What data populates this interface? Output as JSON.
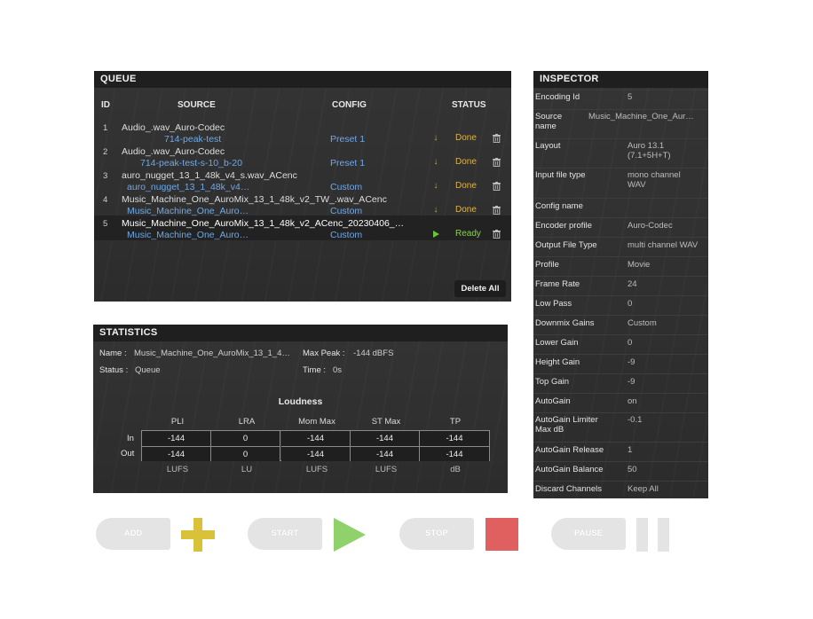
{
  "queue": {
    "title": "QUEUE",
    "columns": {
      "id": "ID",
      "source": "SOURCE",
      "config": "CONFIG",
      "status": "STATUS"
    },
    "rows": [
      {
        "id": "1",
        "source_line1": "Audio_.wav_Auro-Codec",
        "source_line2": "714-peak-test",
        "config": "Preset 1",
        "status": "Done",
        "status_icon": "download-icon"
      },
      {
        "id": "2",
        "source_line1": "Audio_.wav_Auro-Codec",
        "source_line2": "714-peak-test-s-10_b-20",
        "config": "Preset 1",
        "status": "Done",
        "status_icon": "download-icon"
      },
      {
        "id": "3",
        "source_line1": "auro_nugget_13_1_48k_v4_s.wav_ACenc",
        "source_line2": "auro_nugget_13_1_48k_v4…",
        "config": "Custom",
        "status": "Done",
        "status_icon": "download-icon"
      },
      {
        "id": "4",
        "source_line1": "Music_Machine_One_AuroMix_13_1_48k_v2_TW_.wav_ACenc",
        "source_line2": "Music_Machine_One_Auro…",
        "config": "Custom",
        "status": "Done",
        "status_icon": "download-icon"
      },
      {
        "id": "5",
        "source_line1": "Music_Machine_One_AuroMix_13_1_48k_v2_ACenc_20230406_…",
        "source_line2": "Music_Machine_One_Auro…",
        "config": "Custom",
        "status": "Ready",
        "status_icon": "play-icon"
      }
    ],
    "delete_all_label": "Delete All"
  },
  "inspector": {
    "title": "INSPECTOR",
    "rows": [
      {
        "label": "Encoding Id",
        "value": "5"
      },
      {
        "label": "Source name",
        "value": "Music_Machine_One_Aur…"
      },
      {
        "label": "Layout",
        "value": "Auro 13.1 (7.1+5H+T)"
      },
      {
        "label": "Input file type",
        "value": "mono channel WAV"
      },
      {
        "label": "Config name",
        "value": ""
      },
      {
        "label": "Encoder profile",
        "value": "Auro-Codec"
      },
      {
        "label": "Output File Type",
        "value": "multi channel WAV"
      },
      {
        "label": "Profile",
        "value": "Movie"
      },
      {
        "label": "Frame Rate",
        "value": "24"
      },
      {
        "label": "Low Pass",
        "value": "0"
      },
      {
        "label": "Downmix Gains",
        "value": "Custom"
      },
      {
        "label": "Lower Gain",
        "value": "0"
      },
      {
        "label": "Height Gain",
        "value": "-9"
      },
      {
        "label": "Top Gain",
        "value": "-9"
      },
      {
        "label": "AutoGain",
        "value": "on"
      },
      {
        "label": "AutoGain Limiter Max dB",
        "value": "-0.1"
      },
      {
        "label": "AutoGain Release",
        "value": "1"
      },
      {
        "label": "AutoGain Balance",
        "value": "50"
      },
      {
        "label": "Discard Channels",
        "value": "Keep All"
      }
    ]
  },
  "statistics": {
    "title": "STATISTICS",
    "name_label": "Name :",
    "name_value": "Music_Machine_One_AuroMix_13_1_4…",
    "max_peak_label": "Max Peak :",
    "max_peak_value": "-144 dBFS",
    "status_label": "Status :",
    "status_value": "Queue",
    "time_label": "Time :",
    "time_value": "0s",
    "loudness_title": "Loudness",
    "columns": [
      "PLI",
      "LRA",
      "Mom Max",
      "ST Max",
      "TP"
    ],
    "row_labels": [
      "In",
      "Out"
    ],
    "in_values": [
      "-144",
      "0",
      "-144",
      "-144",
      "-144"
    ],
    "out_values": [
      "-144",
      "0",
      "-144",
      "-144",
      "-144"
    ],
    "units": [
      "LUFS",
      "LU",
      "LUFS",
      "LUFS",
      "dB"
    ]
  },
  "controls": {
    "add_label": "ADD",
    "start_label": "START",
    "stop_label": "STOP",
    "pause_label": "PAUSE"
  },
  "colors": {
    "add_accent": "#d9c13a",
    "start_accent": "#8fd16b",
    "stop_accent": "#e06060",
    "pause_accent": "#e4e4e4",
    "done": "#e3b43c",
    "ready": "#8ccf4f",
    "link": "#6fa8e8"
  }
}
